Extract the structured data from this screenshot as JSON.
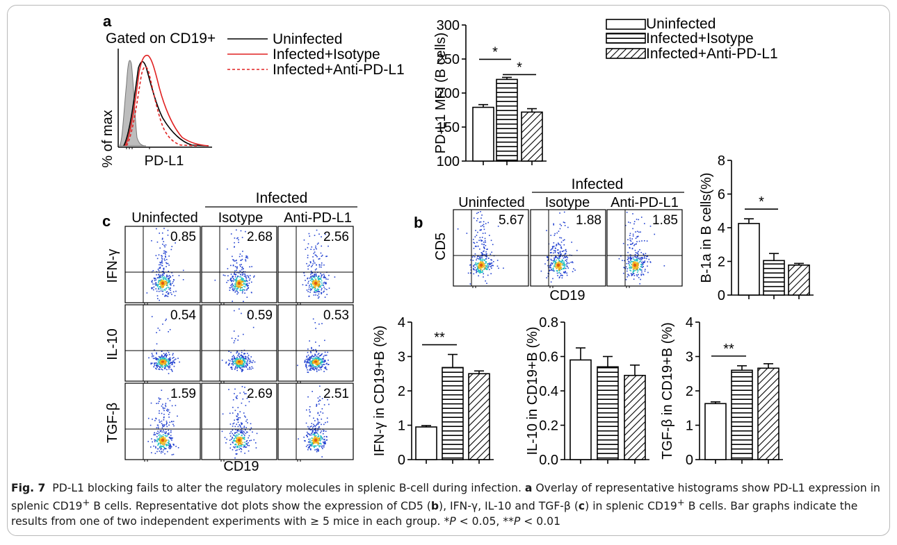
{
  "panel_labels": {
    "a": "a",
    "b": "b",
    "c": "c"
  },
  "histogram": {
    "gate_label": "Gated on CD19+",
    "xlabel": "PD-L1",
    "ylabel": "% of max",
    "legend": [
      "Uninfected",
      "Infected+Isotype",
      "Infected+Anti-PD-L1"
    ]
  },
  "bar_legend": [
    "Uninfected",
    "Infected+Isotype",
    "Infected+Anti-PD-L1"
  ],
  "flow_b": {
    "top_group": "Infected",
    "col_labels": [
      "Uninfected",
      "Isotype",
      "Anti-PD-L1"
    ],
    "values": [
      "5.67",
      "1.88",
      "1.85"
    ],
    "ylabel": "CD5",
    "xlabel": "CD19"
  },
  "flow_c": {
    "top_group": "Infected",
    "col_labels": [
      "Uninfected",
      "Isotype",
      "Anti-PD-L1"
    ],
    "row_labels": [
      "IFN-γ",
      "IL-10",
      "TGF-β"
    ],
    "values": [
      [
        "0.85",
        "2.68",
        "2.56"
      ],
      [
        "0.54",
        "0.59",
        "0.53"
      ],
      [
        "1.59",
        "2.69",
        "2.51"
      ]
    ],
    "xlabel": "CD19"
  },
  "caption": {
    "fig": "Fig. 7",
    "t1": "PD-L1 blocking fails to alter the regulatory molecules in splenic B-cell during infection. ",
    "a": "a",
    "t2": " Overlay of representative histograms show PD-L1 expression in splenic CD19",
    "sup1": "+",
    "t3": " B cells. Representative dot plots show the expression of CD5 (",
    "b": "b",
    "t4": "), IFN-γ, IL-10 and TGF-β (",
    "c": "c",
    "t5": ") in splenic CD19",
    "sup2": "+",
    "t6": " B cells. Bar graphs indicate the results from one of two independent experiments with ≥ 5 mice in each group. *",
    "p1": "P",
    "t7": " < 0.05, **",
    "p2": "P",
    "t8": " < 0.01"
  },
  "chart_data": [
    {
      "type": "bar",
      "id": "pdl1",
      "categories": [
        "Uninfected",
        "Infected+Isotype",
        "Infected+Anti-PD-L1"
      ],
      "values": [
        179,
        220,
        172
      ],
      "errors": [
        4,
        3,
        5
      ],
      "ylabel": "PD-L1 MFI (B cells)",
      "ylim": [
        100,
        300
      ],
      "ticks": [
        100,
        150,
        200,
        250,
        300
      ],
      "tick_labels": [
        "100",
        "150",
        "200",
        "250",
        "300"
      ],
      "significance": [
        {
          "from": 0,
          "to": 1,
          "label": "*"
        },
        {
          "from": 1,
          "to": 2,
          "label": "*"
        }
      ]
    },
    {
      "type": "bar",
      "id": "b1a",
      "categories": [
        "Uninfected",
        "Infected+Isotype",
        "Infected+Anti-PD-L1"
      ],
      "values": [
        4.25,
        2.05,
        1.78
      ],
      "errors": [
        0.28,
        0.42,
        0.1
      ],
      "ylabel": "B-1a in B cells(%)",
      "ylim": [
        0,
        8
      ],
      "ticks": [
        0,
        2,
        4,
        6,
        8
      ],
      "tick_labels": [
        "0",
        "2",
        "4",
        "6",
        "8"
      ],
      "significance": [
        {
          "from": 0,
          "to": 1,
          "label": "*"
        }
      ]
    },
    {
      "type": "bar",
      "id": "ifng",
      "categories": [
        "Uninfected",
        "Infected+Isotype",
        "Infected+Anti-PD-L1"
      ],
      "values": [
        0.95,
        2.68,
        2.5
      ],
      "errors": [
        0.04,
        0.38,
        0.08
      ],
      "ylabel": "IFN-γ in CD19+B (%)",
      "ylim": [
        0,
        4
      ],
      "ticks": [
        0,
        1,
        2,
        3,
        4
      ],
      "tick_labels": [
        "0",
        "1",
        "2",
        "3",
        "4"
      ],
      "significance": [
        {
          "from": 0,
          "to": 1,
          "label": "**"
        }
      ]
    },
    {
      "type": "bar",
      "id": "il10",
      "categories": [
        "Uninfected",
        "Infected+Isotype",
        "Infected+Anti-PD-L1"
      ],
      "values": [
        0.58,
        0.54,
        0.49
      ],
      "errors": [
        0.07,
        0.06,
        0.06
      ],
      "ylabel": "IL-10 in CD19+B (%)",
      "ylim": [
        0,
        0.8
      ],
      "ticks": [
        0,
        0.2,
        0.4,
        0.6,
        0.8
      ],
      "tick_labels": [
        "0.0",
        "0.2",
        "0.4",
        "0.6",
        "0.8"
      ],
      "significance": []
    },
    {
      "type": "bar",
      "id": "tgfb",
      "categories": [
        "Uninfected",
        "Infected+Isotype",
        "Infected+Anti-PD-L1"
      ],
      "values": [
        1.63,
        2.6,
        2.66
      ],
      "errors": [
        0.05,
        0.13,
        0.13
      ],
      "ylabel": "TGF-β in CD19+B (%)",
      "ylim": [
        0,
        4
      ],
      "ticks": [
        0,
        1,
        2,
        3,
        4
      ],
      "tick_labels": [
        "0",
        "1",
        "2",
        "3",
        "4"
      ],
      "significance": [
        {
          "from": 0,
          "to": 1,
          "label": "**"
        }
      ]
    }
  ]
}
